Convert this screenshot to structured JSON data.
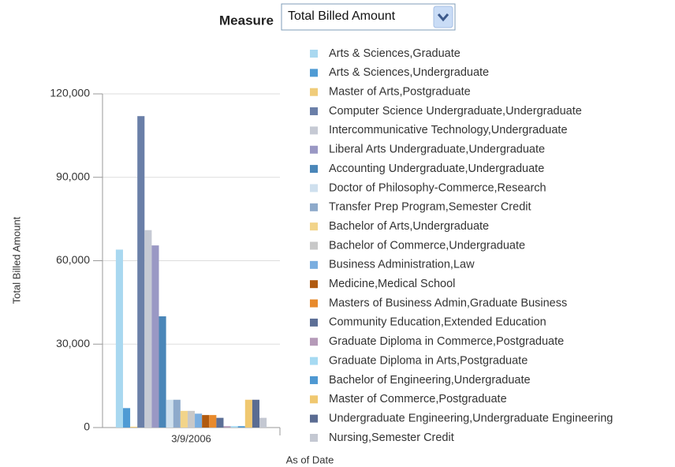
{
  "controls": {
    "label": "Measure",
    "selected": "Total Billed Amount"
  },
  "chart_data": {
    "type": "bar",
    "categories": [
      "3/9/2006"
    ],
    "x_label": "As of Date",
    "y_label": "Total Billed Amount",
    "ylim": [
      0,
      120000
    ],
    "yticks": [
      0,
      {
        "value": 30000,
        "label": "30,000"
      },
      {
        "value": 60000,
        "label": "60,000"
      },
      {
        "value": 90000,
        "label": "90,000"
      },
      {
        "value": 120000,
        "label": "120,000"
      }
    ],
    "grid": true,
    "legend": "right",
    "series": [
      {
        "name": "Arts & Sciences,Graduate",
        "color": "#a9d8f0",
        "values": [
          64000
        ]
      },
      {
        "name": "Arts & Sciences,Undergraduate",
        "color": "#4f9bd4",
        "values": [
          7000
        ]
      },
      {
        "name": "Master of Arts,Postgraduate",
        "color": "#f0cc7a",
        "values": [
          300
        ]
      },
      {
        "name": "Computer Science Undergraduate,Undergraduate",
        "color": "#6a7fa8",
        "values": [
          112000
        ]
      },
      {
        "name": "Intercommunicative Technology,Undergraduate",
        "color": "#c6cad4",
        "values": [
          71000
        ]
      },
      {
        "name": "Liberal Arts Undergraduate,Undergraduate",
        "color": "#9a98c4",
        "values": [
          65500
        ]
      },
      {
        "name": "Accounting Undergraduate,Undergraduate",
        "color": "#4a86b8",
        "values": [
          40000
        ]
      },
      {
        "name": "Doctor of Philosophy-Commerce,Research",
        "color": "#cfe0ee",
        "values": [
          10000
        ]
      },
      {
        "name": "Transfer Prep Program,Semester Credit",
        "color": "#8eaacb",
        "values": [
          10000
        ]
      },
      {
        "name": "Bachelor of Arts,Undergraduate",
        "color": "#f2d48a",
        "values": [
          6000
        ]
      },
      {
        "name": "Bachelor of Commerce,Undergraduate",
        "color": "#c8c8c8",
        "values": [
          6000
        ]
      },
      {
        "name": "Business Administration,Law",
        "color": "#7aaee0",
        "values": [
          5000
        ]
      },
      {
        "name": "Medicine,Medical School",
        "color": "#b05a10",
        "values": [
          4500
        ]
      },
      {
        "name": "Masters of Business Admin,Graduate Business",
        "color": "#e88a2c",
        "values": [
          4500
        ]
      },
      {
        "name": "Community Education,Extended Education",
        "color": "#5c6f96",
        "values": [
          3500
        ]
      },
      {
        "name": "Graduate Diploma in Commerce,Postgraduate",
        "color": "#b59ab8",
        "values": [
          500
        ]
      },
      {
        "name": "Graduate Diploma in Arts,Postgraduate",
        "color": "#a6daf2",
        "values": [
          500
        ]
      },
      {
        "name": "Bachelor of Engineering,Undergraduate",
        "color": "#4e98d2",
        "values": [
          500
        ]
      },
      {
        "name": "Master of Commerce,Postgraduate",
        "color": "#f0c870",
        "values": [
          10000
        ]
      },
      {
        "name": "Undergraduate Engineering,Undergraduate Engineering",
        "color": "#5a6c92",
        "values": [
          10000
        ]
      },
      {
        "name": "Nursing,Semester Credit",
        "color": "#c4c8d2",
        "values": [
          3500
        ]
      }
    ]
  }
}
